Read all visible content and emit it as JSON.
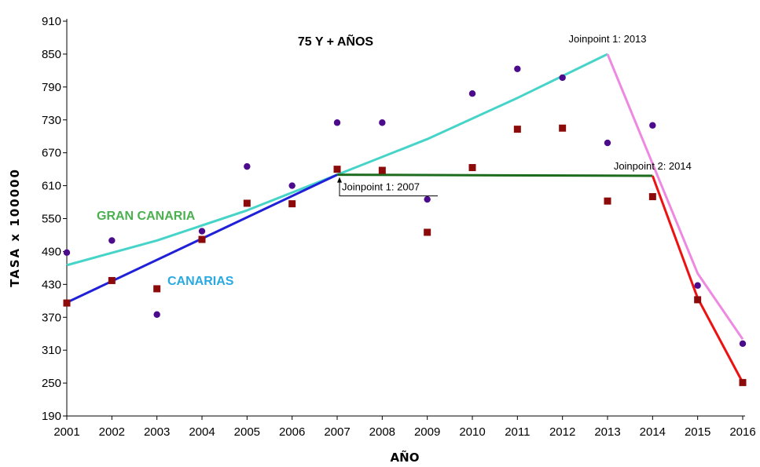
{
  "chart_data": {
    "type": "scatter",
    "title": "75 Y + AÑOS",
    "xlabel": "AÑO",
    "ylabel": "TASA x 100000",
    "x": [
      2001,
      2002,
      2003,
      2004,
      2005,
      2006,
      2007,
      2008,
      2009,
      2010,
      2011,
      2012,
      2013,
      2014,
      2015,
      2016
    ],
    "x_ticks": [
      "2001",
      "2002",
      "2003",
      "2004",
      "2005",
      "2006",
      "2007",
      "2008",
      "2009",
      "2010",
      "2011",
      "2012",
      "2013",
      "2014",
      "2015",
      "2016"
    ],
    "y_ticks": [
      190,
      250,
      310,
      370,
      430,
      490,
      550,
      610,
      670,
      730,
      790,
      850,
      910
    ],
    "ylim": [
      190,
      910
    ],
    "grid": false,
    "series": [
      {
        "name": "GRAN CANARIA",
        "color": "#4bb04f",
        "point_color": "#4b0b8c",
        "marker": "circle",
        "points": [
          488,
          510,
          375,
          527,
          645,
          610,
          725,
          725,
          585,
          778,
          823,
          807,
          688,
          720,
          428,
          322
        ],
        "fit": [
          [
            2001,
            465
          ],
          [
            2003,
            510
          ],
          [
            2005,
            565
          ],
          [
            2007,
            630
          ],
          [
            2009,
            695
          ],
          [
            2011,
            770
          ],
          [
            2013,
            850
          ],
          [
            2015,
            450
          ],
          [
            2016,
            330
          ]
        ],
        "fit_colors": [
          "#46d4c9",
          "#ee88e0"
        ],
        "joinpoints": [
          {
            "label": "Joinpoint 1:  2013",
            "x": 2013,
            "y": 850
          }
        ]
      },
      {
        "name": "CANARIAS",
        "color": "#29a9df",
        "point_color": "#8c0a0a",
        "marker": "square",
        "points": [
          396,
          437,
          422,
          512,
          578,
          577,
          640,
          638,
          525,
          643,
          713,
          715,
          582,
          590,
          402,
          251
        ],
        "fit": [
          [
            2001,
            397
          ],
          [
            2007,
            630
          ],
          [
            2014,
            628
          ],
          [
            2015,
            405
          ],
          [
            2016,
            251
          ]
        ],
        "fit_colors": [
          "#2020d8",
          "#1d6b1d",
          "#ee1111"
        ],
        "joinpoints": [
          {
            "label": "Joinpoint 1:  2007",
            "x": 2007,
            "y": 630
          },
          {
            "label": "Joinpoint 2:  2014",
            "x": 2014,
            "y": 628
          }
        ]
      }
    ]
  }
}
